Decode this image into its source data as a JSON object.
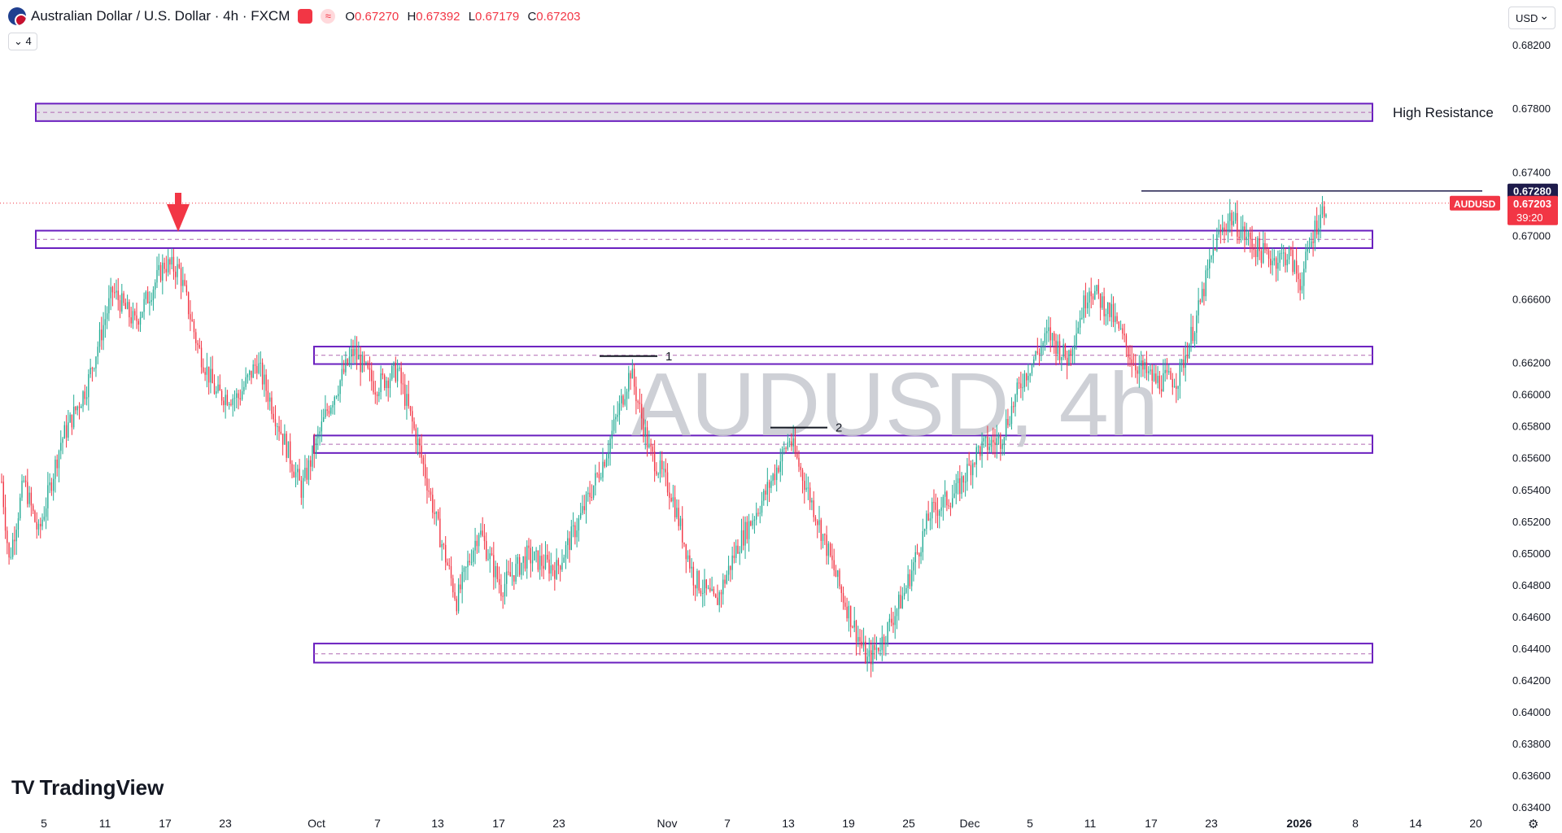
{
  "header": {
    "title": "Australian Dollar / U.S. Dollar · 4h · FXCM",
    "ohlc": [
      {
        "k": "O",
        "v": "0.67270"
      },
      {
        "k": "H",
        "v": "0.67392"
      },
      {
        "k": "L",
        "v": "0.67179"
      },
      {
        "k": "C",
        "v": "0.67203"
      }
    ],
    "indicator_count": "4"
  },
  "currency_selector": "USD",
  "watermark": "AUDUSD, 4h",
  "logo_text": "TradingView",
  "colors": {
    "up": "#22ab94",
    "down": "#f23645",
    "zone_border": "#6a1fbf",
    "zone_fill": "#ffffff",
    "high_zone_fill": "#d9d3e0",
    "zone_midline": "#b06ab3"
  },
  "chart_data": {
    "type": "candlestick",
    "symbol": "AUDUSD",
    "timeframe": "4h",
    "y_axis": {
      "ylim": [
        0.6336,
        0.6838
      ],
      "ticks": [
        "0.68200",
        "0.67800",
        "0.67400",
        "0.67000",
        "0.66600",
        "0.66200",
        "0.66000",
        "0.65800",
        "0.65600",
        "0.65400",
        "0.65200",
        "0.65000",
        "0.64800",
        "0.64600",
        "0.64400",
        "0.64200",
        "0.64000",
        "0.63800",
        "0.63600",
        "0.63400"
      ]
    },
    "x_axis": {
      "ticks": [
        "5",
        "11",
        "17",
        "23",
        "Oct",
        "7",
        "13",
        "17",
        "23",
        "Nov",
        "7",
        "13",
        "19",
        "25",
        "Dec",
        "5",
        "11",
        "17",
        "23",
        "2026",
        "8",
        "14",
        "20"
      ],
      "bold_ticks": [
        "2026"
      ]
    },
    "price_path": [
      {
        "t": 0,
        "p": 0.6545
      },
      {
        "t": 4,
        "p": 0.6495
      },
      {
        "t": 12,
        "p": 0.6545
      },
      {
        "t": 20,
        "p": 0.6512
      },
      {
        "t": 32,
        "p": 0.657
      },
      {
        "t": 46,
        "p": 0.6605
      },
      {
        "t": 60,
        "p": 0.6665
      },
      {
        "t": 72,
        "p": 0.6645
      },
      {
        "t": 88,
        "p": 0.6682
      },
      {
        "t": 96,
        "p": 0.6678
      },
      {
        "t": 106,
        "p": 0.663
      },
      {
        "t": 116,
        "p": 0.66
      },
      {
        "t": 128,
        "p": 0.6598
      },
      {
        "t": 138,
        "p": 0.662
      },
      {
        "t": 150,
        "p": 0.658
      },
      {
        "t": 162,
        "p": 0.654
      },
      {
        "t": 176,
        "p": 0.659
      },
      {
        "t": 190,
        "p": 0.6627
      },
      {
        "t": 202,
        "p": 0.6605
      },
      {
        "t": 214,
        "p": 0.6615
      },
      {
        "t": 226,
        "p": 0.6565
      },
      {
        "t": 236,
        "p": 0.6515
      },
      {
        "t": 246,
        "p": 0.647
      },
      {
        "t": 258,
        "p": 0.6515
      },
      {
        "t": 270,
        "p": 0.6478
      },
      {
        "t": 284,
        "p": 0.6498
      },
      {
        "t": 300,
        "p": 0.649
      },
      {
        "t": 312,
        "p": 0.652
      },
      {
        "t": 326,
        "p": 0.656
      },
      {
        "t": 340,
        "p": 0.6615
      },
      {
        "t": 350,
        "p": 0.6565
      },
      {
        "t": 362,
        "p": 0.6538
      },
      {
        "t": 374,
        "p": 0.6485
      },
      {
        "t": 386,
        "p": 0.6468
      },
      {
        "t": 398,
        "p": 0.6505
      },
      {
        "t": 412,
        "p": 0.6535
      },
      {
        "t": 426,
        "p": 0.6572
      },
      {
        "t": 440,
        "p": 0.6525
      },
      {
        "t": 454,
        "p": 0.6475
      },
      {
        "t": 468,
        "p": 0.6432
      },
      {
        "t": 476,
        "p": 0.6445
      },
      {
        "t": 488,
        "p": 0.6475
      },
      {
        "t": 502,
        "p": 0.6525
      },
      {
        "t": 516,
        "p": 0.6538
      },
      {
        "t": 528,
        "p": 0.6565
      },
      {
        "t": 540,
        "p": 0.6572
      },
      {
        "t": 552,
        "p": 0.661
      },
      {
        "t": 566,
        "p": 0.6638
      },
      {
        "t": 576,
        "p": 0.6622
      },
      {
        "t": 588,
        "p": 0.6668
      },
      {
        "t": 600,
        "p": 0.665
      },
      {
        "t": 612,
        "p": 0.662
      },
      {
        "t": 624,
        "p": 0.6608
      },
      {
        "t": 636,
        "p": 0.661
      },
      {
        "t": 646,
        "p": 0.6648
      },
      {
        "t": 656,
        "p": 0.6695
      },
      {
        "t": 664,
        "p": 0.6712
      },
      {
        "t": 672,
        "p": 0.67
      },
      {
        "t": 680,
        "p": 0.669
      },
      {
        "t": 688,
        "p": 0.6685
      },
      {
        "t": 696,
        "p": 0.6688
      },
      {
        "t": 702,
        "p": 0.667
      },
      {
        "t": 710,
        "p": 0.6705
      },
      {
        "t": 716,
        "p": 0.672
      }
    ],
    "zones": [
      {
        "label": "High Resistance",
        "top": 0.6783,
        "bottom": 0.6772,
        "mid": 0.67775,
        "highlight": true
      },
      {
        "label": "",
        "top": 0.6703,
        "bottom": 0.6692,
        "mid": 0.66975,
        "highlight": false
      },
      {
        "label": "",
        "top": 0.663,
        "bottom": 0.6619,
        "mid": 0.66245,
        "highlight": false
      },
      {
        "label": "",
        "top": 0.6574,
        "bottom": 0.6563,
        "mid": 0.65685,
        "highlight": false
      },
      {
        "label": "",
        "top": 0.6443,
        "bottom": 0.6431,
        "mid": 0.64365,
        "highlight": false
      }
    ],
    "swing_lines": [
      {
        "label": "1",
        "price": 0.6624
      },
      {
        "label": "2",
        "price": 0.6579
      }
    ],
    "horizontal_level": {
      "price": 0.6728,
      "label": "0.67280"
    },
    "last_price": {
      "symbol": "AUDUSD",
      "price": "0.67203",
      "countdown": "39:20"
    }
  }
}
